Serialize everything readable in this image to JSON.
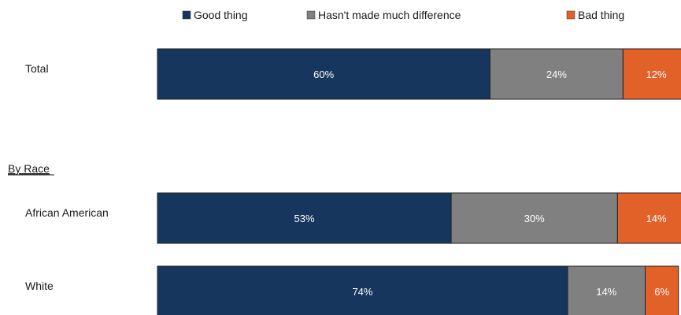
{
  "chart_data": {
    "type": "bar",
    "orientation": "horizontal",
    "stacked": true,
    "title": "",
    "xlabel": "",
    "ylabel": "",
    "xlim": [
      0,
      100
    ],
    "legend_position": "top",
    "grid": false,
    "group_header": "By Race",
    "categories": [
      "Total",
      "African American",
      "White"
    ],
    "series": [
      {
        "name": "Good thing",
        "color": "#17365d",
        "values": [
          60,
          53,
          74
        ]
      },
      {
        "name": "Hasn't made much difference",
        "color": "#808080",
        "values": [
          24,
          30,
          14
        ]
      },
      {
        "name": "Bad thing",
        "color": "#e26128",
        "values": [
          12,
          14,
          6
        ]
      }
    ],
    "value_labels": [
      [
        "60%",
        "24%",
        "12%"
      ],
      [
        "53%",
        "30%",
        "14%"
      ],
      [
        "74%",
        "14%",
        "6%"
      ]
    ]
  }
}
